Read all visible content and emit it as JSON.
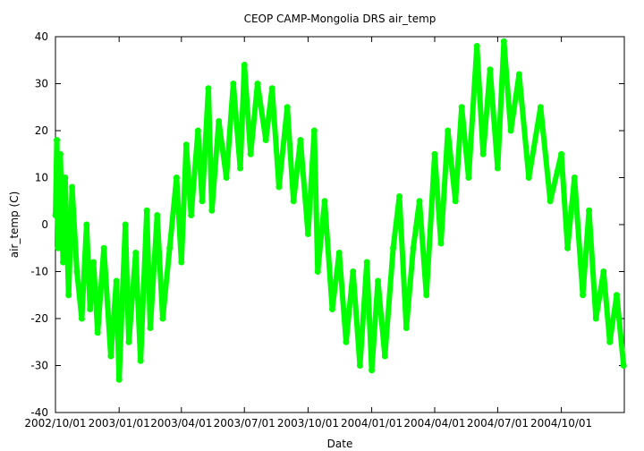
{
  "chart_data": {
    "type": "scatter",
    "title": "CEOP CAMP-Mongolia DRS  air_temp",
    "xlabel": "Date",
    "ylabel": "air_temp (C)",
    "ylim": [
      -40,
      40
    ],
    "xlim": [
      "2002-10-01",
      "2004-12-31"
    ],
    "y_ticks": [
      -40,
      -30,
      -20,
      -10,
      0,
      10,
      20,
      30,
      40
    ],
    "x_ticks": [
      {
        "date": "2002-10-01",
        "label": "2002/10/01"
      },
      {
        "date": "2003-01-01",
        "label": "2003/01/01"
      },
      {
        "date": "2003-04-01",
        "label": "2003/04/01"
      },
      {
        "date": "2003-07-01",
        "label": "2003/07/01"
      },
      {
        "date": "2003-10-01",
        "label": "2003/10/01"
      },
      {
        "date": "2004-01-01",
        "label": "2004/01/01"
      },
      {
        "date": "2004-04-01",
        "label": "2004/04/01"
      },
      {
        "date": "2004-07-01",
        "label": "2004/07/01"
      },
      {
        "date": "2004-10-01",
        "label": "2004/10/01"
      }
    ],
    "grid": false,
    "legend": "none",
    "marker_color": "#00ff00",
    "series": [
      {
        "points": [
          [
            "2002-10-01",
            2
          ],
          [
            "2002-10-03",
            18
          ],
          [
            "2002-10-05",
            -5
          ],
          [
            "2002-10-08",
            15
          ],
          [
            "2002-10-12",
            -8
          ],
          [
            "2002-10-15",
            10
          ],
          [
            "2002-10-20",
            -15
          ],
          [
            "2002-10-25",
            8
          ],
          [
            "2002-11-01",
            -10
          ],
          [
            "2002-11-08",
            -20
          ],
          [
            "2002-11-15",
            0
          ],
          [
            "2002-11-20",
            -18
          ],
          [
            "2002-11-25",
            -8
          ],
          [
            "2002-12-01",
            -23
          ],
          [
            "2002-12-10",
            -5
          ],
          [
            "2002-12-20",
            -28
          ],
          [
            "2002-12-28",
            -12
          ],
          [
            "2003-01-01",
            -33
          ],
          [
            "2003-01-05",
            -18
          ],
          [
            "2003-01-10",
            0
          ],
          [
            "2003-01-15",
            -25
          ],
          [
            "2003-01-25",
            -6
          ],
          [
            "2003-02-01",
            -29
          ],
          [
            "2003-02-10",
            3
          ],
          [
            "2003-02-15",
            -22
          ],
          [
            "2003-02-25",
            2
          ],
          [
            "2003-03-05",
            -20
          ],
          [
            "2003-03-15",
            -5
          ],
          [
            "2003-03-25",
            10
          ],
          [
            "2003-04-01",
            -8
          ],
          [
            "2003-04-08",
            17
          ],
          [
            "2003-04-15",
            2
          ],
          [
            "2003-04-25",
            20
          ],
          [
            "2003-05-01",
            5
          ],
          [
            "2003-05-10",
            29
          ],
          [
            "2003-05-15",
            3
          ],
          [
            "2003-05-25",
            22
          ],
          [
            "2003-06-05",
            10
          ],
          [
            "2003-06-15",
            30
          ],
          [
            "2003-06-25",
            12
          ],
          [
            "2003-07-01",
            34
          ],
          [
            "2003-07-10",
            15
          ],
          [
            "2003-07-20",
            30
          ],
          [
            "2003-08-01",
            18
          ],
          [
            "2003-08-10",
            29
          ],
          [
            "2003-08-20",
            8
          ],
          [
            "2003-09-01",
            25
          ],
          [
            "2003-09-10",
            5
          ],
          [
            "2003-09-20",
            18
          ],
          [
            "2003-10-01",
            -2
          ],
          [
            "2003-10-10",
            20
          ],
          [
            "2003-10-15",
            -10
          ],
          [
            "2003-10-25",
            5
          ],
          [
            "2003-11-05",
            -18
          ],
          [
            "2003-11-15",
            -6
          ],
          [
            "2003-11-25",
            -25
          ],
          [
            "2003-12-05",
            -10
          ],
          [
            "2003-12-15",
            -30
          ],
          [
            "2003-12-25",
            -8
          ],
          [
            "2004-01-01",
            -31
          ],
          [
            "2004-01-10",
            -12
          ],
          [
            "2004-01-20",
            -28
          ],
          [
            "2004-02-01",
            -5
          ],
          [
            "2004-02-10",
            6
          ],
          [
            "2004-02-20",
            -22
          ],
          [
            "2004-03-01",
            -5
          ],
          [
            "2004-03-10",
            5
          ],
          [
            "2004-03-20",
            -15
          ],
          [
            "2004-04-01",
            15
          ],
          [
            "2004-04-10",
            -4
          ],
          [
            "2004-04-20",
            20
          ],
          [
            "2004-05-01",
            5
          ],
          [
            "2004-05-10",
            25
          ],
          [
            "2004-05-20",
            10
          ],
          [
            "2004-06-01",
            38
          ],
          [
            "2004-06-10",
            15
          ],
          [
            "2004-06-20",
            33
          ],
          [
            "2004-07-01",
            12
          ],
          [
            "2004-07-10",
            39
          ],
          [
            "2004-07-20",
            20
          ],
          [
            "2004-08-01",
            32
          ],
          [
            "2004-08-15",
            10
          ],
          [
            "2004-09-01",
            25
          ],
          [
            "2004-09-15",
            5
          ],
          [
            "2004-10-01",
            15
          ],
          [
            "2004-10-10",
            -5
          ],
          [
            "2004-10-20",
            10
          ],
          [
            "2004-11-01",
            -15
          ],
          [
            "2004-11-10",
            3
          ],
          [
            "2004-11-20",
            -20
          ],
          [
            "2004-12-01",
            -10
          ],
          [
            "2004-12-10",
            -25
          ],
          [
            "2004-12-20",
            -15
          ],
          [
            "2004-12-30",
            -30
          ]
        ]
      }
    ]
  }
}
